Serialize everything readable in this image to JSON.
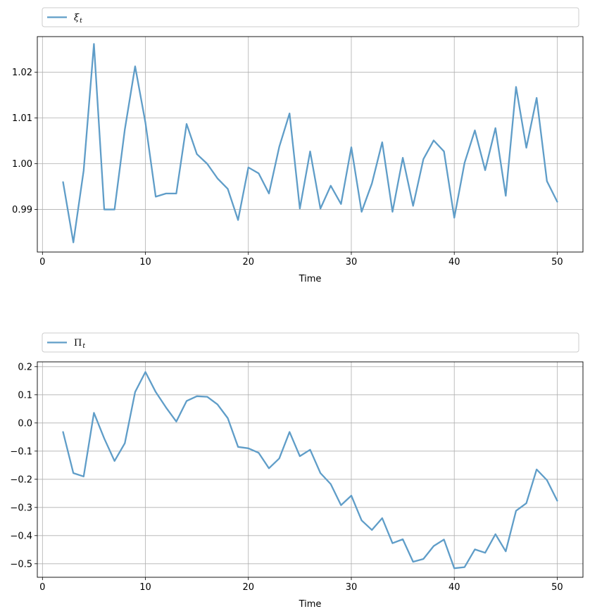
{
  "chart_data": [
    {
      "type": "line",
      "title": "",
      "xlabel": "Time",
      "ylabel": "",
      "xlim": [
        -0.5,
        52.5
      ],
      "ylim": [
        0.9807,
        1.0278
      ],
      "xticks": [
        0,
        10,
        20,
        30,
        40,
        50
      ],
      "yticks": [
        0.99,
        1.0,
        1.01,
        1.02
      ],
      "ytick_labels": [
        "0.99",
        "1.00",
        "1.01",
        "1.02"
      ],
      "grid": true,
      "legend_placement": "above plot, left",
      "series": [
        {
          "name": "ξ",
          "name_subscript": "t",
          "color": "#5f9dc8",
          "x": [
            2,
            3,
            4,
            5,
            6,
            7,
            8,
            9,
            10,
            11,
            12,
            13,
            14,
            15,
            16,
            17,
            18,
            19,
            20,
            21,
            22,
            23,
            24,
            25,
            26,
            27,
            28,
            29,
            30,
            31,
            32,
            33,
            34,
            35,
            36,
            37,
            38,
            39,
            40,
            41,
            42,
            43,
            44,
            45,
            46,
            47,
            48,
            49,
            50
          ],
          "y": [
            0.996,
            0.9828,
            0.9985,
            1.0262,
            0.99,
            0.99,
            1.0075,
            1.0213,
            1.009,
            0.9928,
            0.9935,
            0.9935,
            1.0087,
            1.0021,
            1.0,
            0.9968,
            0.9945,
            0.9877,
            0.9992,
            0.9979,
            0.9935,
            1.0037,
            1.011,
            0.9902,
            1.0027,
            0.9902,
            0.9952,
            0.9912,
            1.0036,
            0.9895,
            0.9957,
            1.0047,
            0.9895,
            1.0013,
            0.9908,
            1.001,
            1.0051,
            1.0027,
            0.9882,
            1.0002,
            1.0073,
            0.9986,
            1.0078,
            0.993,
            1.0168,
            1.0035,
            1.0144,
            0.9962,
            0.9917
          ]
        }
      ]
    },
    {
      "type": "line",
      "title": "",
      "xlabel": "Time",
      "ylabel": "",
      "xlim": [
        -0.5,
        52.5
      ],
      "ylim": [
        -0.548,
        0.217
      ],
      "xticks": [
        0,
        10,
        20,
        30,
        40,
        50
      ],
      "yticks": [
        0.2,
        0.1,
        0.0,
        -0.1,
        -0.2,
        -0.3,
        -0.4,
        -0.5
      ],
      "ytick_labels": [
        "0.2",
        "0.1",
        "0.0",
        "−0.1",
        "−0.2",
        "−0.3",
        "−0.4",
        "−0.5"
      ],
      "grid": true,
      "legend_placement": "above plot, left",
      "series": [
        {
          "name": "Π",
          "name_subscript": "t",
          "color": "#5f9dc8",
          "x": [
            2,
            3,
            4,
            5,
            6,
            7,
            8,
            9,
            10,
            11,
            12,
            13,
            14,
            15,
            16,
            17,
            18,
            19,
            20,
            21,
            22,
            23,
            24,
            25,
            26,
            27,
            28,
            29,
            30,
            31,
            32,
            33,
            34,
            35,
            36,
            37,
            38,
            39,
            40,
            41,
            42,
            43,
            44,
            45,
            46,
            47,
            48,
            49,
            50
          ],
          "y": [
            -0.032,
            -0.178,
            -0.19,
            0.036,
            -0.055,
            -0.135,
            -0.072,
            0.11,
            0.181,
            0.11,
            0.055,
            0.005,
            0.078,
            0.095,
            0.093,
            0.066,
            0.017,
            -0.085,
            -0.09,
            -0.106,
            -0.161,
            -0.126,
            -0.032,
            -0.118,
            -0.095,
            -0.178,
            -0.217,
            -0.292,
            -0.258,
            -0.346,
            -0.38,
            -0.338,
            -0.427,
            -0.413,
            -0.493,
            -0.483,
            -0.437,
            -0.414,
            -0.516,
            -0.512,
            -0.449,
            -0.461,
            -0.395,
            -0.456,
            -0.312,
            -0.285,
            -0.165,
            -0.203,
            -0.276
          ]
        }
      ]
    }
  ]
}
